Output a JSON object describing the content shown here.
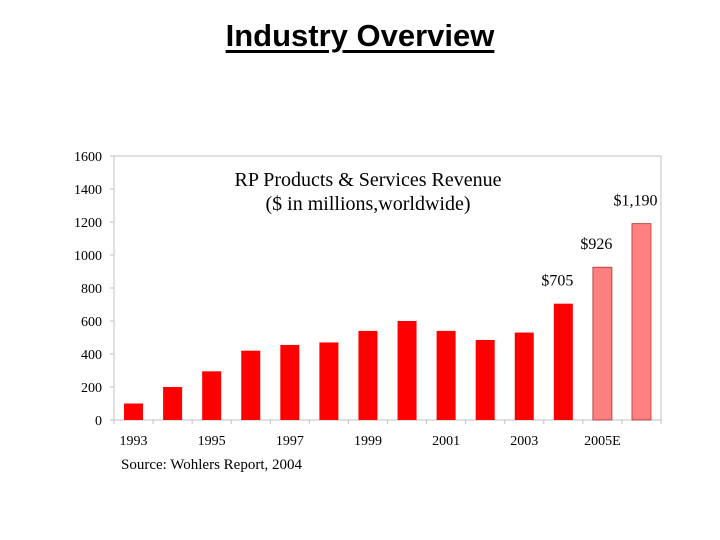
{
  "slide": {
    "title": "Industry Overview",
    "source": "Source: Wohlers Report, 2004"
  },
  "chart_data": {
    "type": "bar",
    "title": "RP Products & Services Revenue",
    "subtitle": "($ in millions,worldwide)",
    "xlabel": "",
    "ylabel": "",
    "ylim": [
      0,
      1600
    ],
    "yticks": [
      0,
      200,
      400,
      600,
      800,
      1000,
      1200,
      1400,
      1600
    ],
    "categories": [
      "1993",
      "1994",
      "1995",
      "1996",
      "1997",
      "1998",
      "1999",
      "2000",
      "2001",
      "2002",
      "2003",
      "2004",
      "2005",
      "2006"
    ],
    "xtick_labels": [
      "1993",
      "1995",
      "1997",
      "1999",
      "2001",
      "2003",
      "2005E"
    ],
    "values": [
      100,
      200,
      295,
      420,
      455,
      470,
      540,
      600,
      540,
      485,
      530,
      705,
      926,
      1190
    ],
    "projected_from_index": 12,
    "data_labels": [
      {
        "index": 11,
        "text": "$705"
      },
      {
        "index": 12,
        "text": "$926"
      },
      {
        "index": 13,
        "text": "$1,190"
      }
    ],
    "grid": false,
    "colors": {
      "actual": "#ff0000",
      "projected": "#ff8080",
      "axis": "#c0c0c0"
    }
  }
}
